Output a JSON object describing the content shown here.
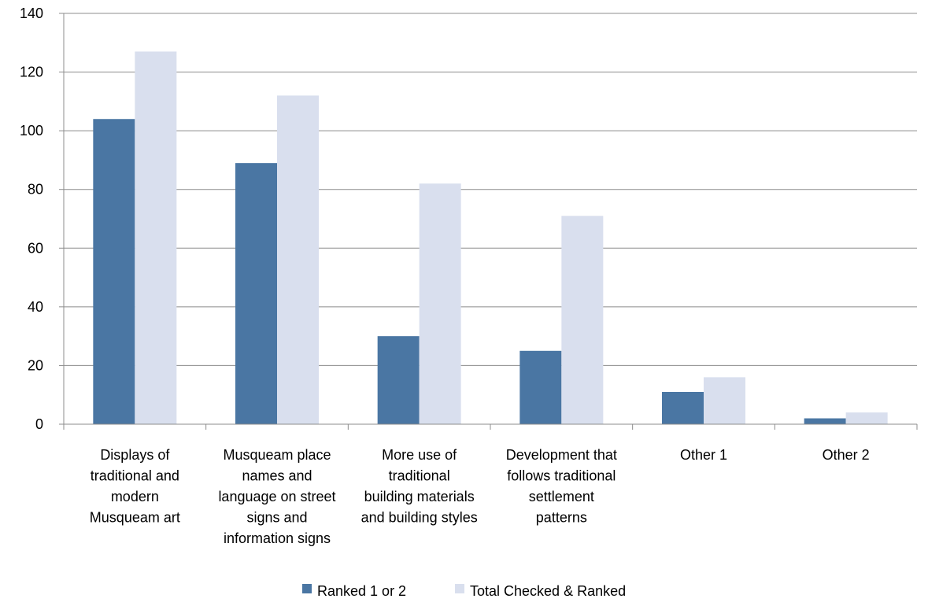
{
  "chart_data": {
    "type": "bar",
    "categories": [
      [
        "Displays of",
        "traditional and",
        "modern",
        "Musqueam art"
      ],
      [
        "Musqueam place",
        "names and",
        "language on street",
        "signs and",
        "information signs"
      ],
      [
        "More use of",
        "traditional",
        "building materials",
        "and building styles"
      ],
      [
        "Development that",
        "follows traditional",
        "settlement",
        "patterns"
      ],
      [
        "Other 1"
      ],
      [
        "Other 2"
      ]
    ],
    "series": [
      {
        "name": "Ranked 1 or 2",
        "values": [
          104,
          89,
          30,
          25,
          11,
          2
        ]
      },
      {
        "name": "Total Checked & Ranked",
        "values": [
          127,
          112,
          82,
          71,
          16,
          4
        ]
      }
    ],
    "ylim": [
      0,
      140
    ],
    "yticks": [
      "0",
      "20",
      "40",
      "60",
      "80",
      "100",
      "120",
      "140"
    ],
    "grid": true,
    "legend": "bottom",
    "colors": {
      "series": [
        "#4a76a3",
        "#d9dfee"
      ],
      "grid": "#8c8c8c",
      "axis": "#8c8c8c"
    }
  }
}
